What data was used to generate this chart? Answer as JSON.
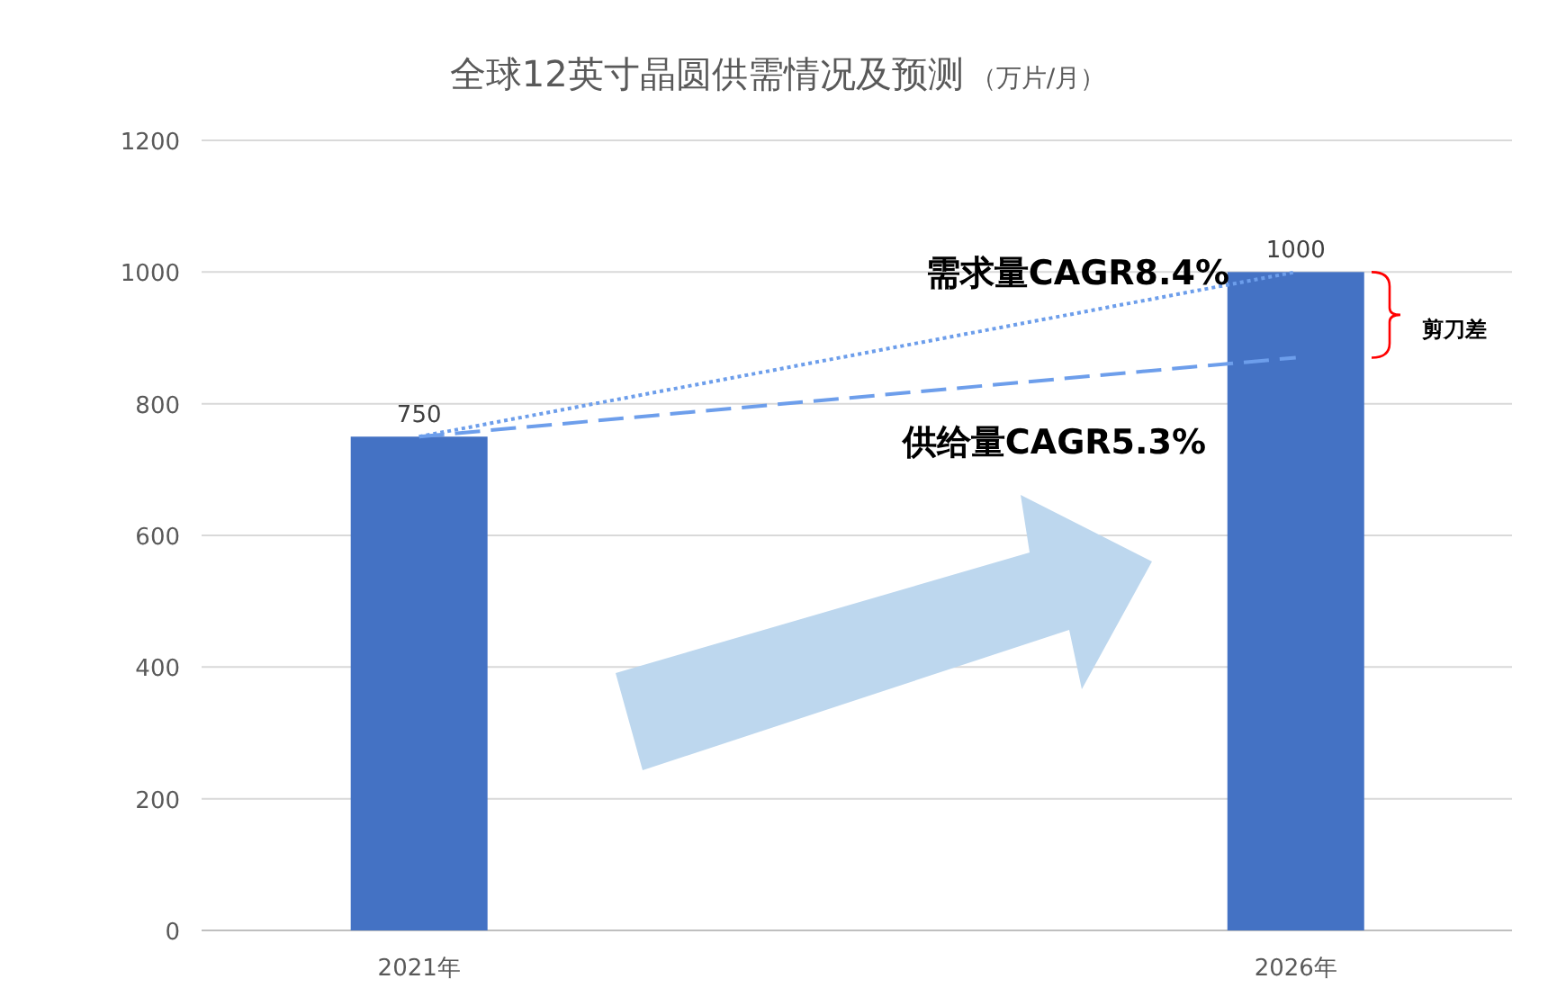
{
  "chart_data": {
    "type": "bar",
    "title": "全球12英寸晶圆供需情况及预测",
    "subtitle": "（万片/月）",
    "categories": [
      "2021年",
      "2026年"
    ],
    "series": [
      {
        "color": "#4472c4",
        "values": [
          750,
          1000
        ],
        "value_labels": [
          "750",
          "1000"
        ]
      },
      {
        "type": "line",
        "color": "#6d9eeb",
        "line_style": "dotted",
        "values": [
          750,
          1000
        ]
      },
      {
        "type": "line",
        "color": "#6d9eeb",
        "line_style": "dashed",
        "values": [
          750,
          870
        ]
      }
    ],
    "annotations": [
      "需求量CAGR8.4%",
      "供给量CAGR5.3%",
      "剪刀差"
    ],
    "ylim": [
      0,
      1200
    ],
    "yticks": [
      0,
      200,
      400,
      600,
      800,
      1000,
      1200
    ],
    "grid": "y"
  }
}
